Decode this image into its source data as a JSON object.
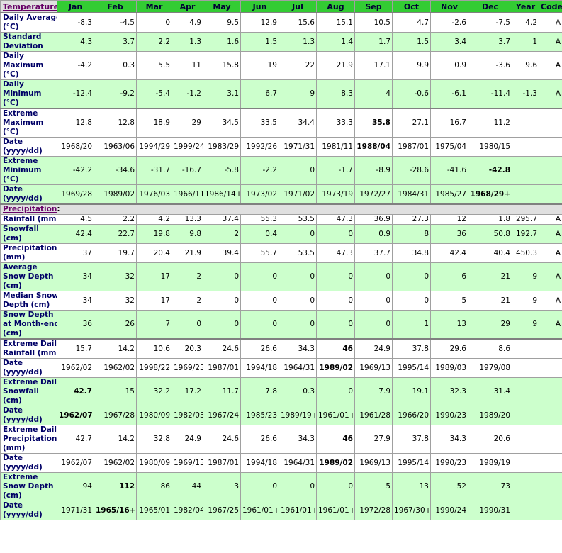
{
  "header": {
    "title": "Temperature",
    "punct": ":",
    "columns": [
      "Jan",
      "Feb",
      "Mar",
      "Apr",
      "May",
      "Jun",
      "Jul",
      "Aug",
      "Sep",
      "Oct",
      "Nov",
      "Dec",
      "Year",
      "Code"
    ]
  },
  "temperature": {
    "groups": [
      {
        "rows": [
          {
            "label": [
              "Daily Average",
              "(°C)"
            ],
            "bg": "#ffffff",
            "values": [
              -8.3,
              -4.5,
              0,
              4.9,
              9.5,
              12.9,
              15.6,
              15.1,
              10.5,
              4.7,
              -2.6,
              -7.5,
              4.2,
              "A"
            ]
          },
          {
            "label": [
              "Standard",
              "Deviation"
            ],
            "bg": "#ccffcc",
            "values": [
              4.3,
              3.7,
              2.2,
              1.3,
              1.6,
              1.5,
              1.3,
              1.4,
              1.7,
              1.5,
              3.4,
              3.7,
              1,
              "A"
            ]
          },
          {
            "label": [
              "Daily",
              "Maximum",
              "(°C)"
            ],
            "bg": "#ffffff",
            "values": [
              -4.2,
              0.3,
              5.5,
              11,
              15.8,
              19,
              22,
              21.9,
              17.1,
              9.9,
              0.9,
              -3.6,
              9.6,
              "A"
            ]
          },
          {
            "label": [
              "Daily",
              "Minimum",
              "(°C)"
            ],
            "bg": "#ccffcc",
            "values": [
              -12.4,
              -9.2,
              -5.4,
              -1.2,
              3.1,
              6.7,
              9,
              8.3,
              4,
              -0.6,
              -6.1,
              -11.4,
              -1.3,
              "A"
            ]
          }
        ]
      },
      {
        "rows": [
          {
            "label": [
              "Extreme",
              "Maximum",
              "(°C)"
            ],
            "bg": "#ffffff",
            "bold": [
              8
            ],
            "values": [
              12.8,
              12.8,
              18.9,
              29,
              34.5,
              33.5,
              34.4,
              33.3,
              35.8,
              27.1,
              16.7,
              11.2
            ]
          },
          {
            "label": [
              "Date",
              "(yyyy/dd)"
            ],
            "bg": "#ffffff",
            "bold": [
              8
            ],
            "values": [
              "1968/20",
              "1963/06",
              "1994/29",
              "1999/24",
              "1983/29",
              "1992/26",
              "1971/31",
              "1981/11",
              "1988/04",
              "1987/01",
              "1975/04",
              "1980/15"
            ]
          },
          {
            "label": [
              "Extreme",
              "Minimum",
              "(°C)"
            ],
            "bg": "#ccffcc",
            "bold": [
              11
            ],
            "values": [
              -42.2,
              -34.6,
              -31.7,
              -16.7,
              -5.8,
              -2.2,
              0,
              -1.7,
              -8.9,
              -28.6,
              -41.6,
              -42.8
            ]
          },
          {
            "label": [
              "Date",
              "(yyyy/dd)"
            ],
            "bg": "#ccffcc",
            "bold": [
              11
            ],
            "values": [
              "1969/28",
              "1989/02",
              "1976/03",
              "1966/11",
              "1986/14+",
              "1973/02",
              "1971/02",
              "1973/19",
              "1972/27",
              "1984/31",
              "1985/27",
              "1968/29+"
            ]
          }
        ]
      }
    ]
  },
  "precipitation": {
    "title": "Precipitation",
    "punct": ":",
    "groups": [
      {
        "rows": [
          {
            "label": [
              "Rainfall (mm)"
            ],
            "bg": "#ffffff",
            "values": [
              4.5,
              2.2,
              4.2,
              13.3,
              37.4,
              55.3,
              53.5,
              47.3,
              36.9,
              27.3,
              12,
              1.8,
              295.7,
              "A"
            ]
          },
          {
            "label": [
              "Snowfall",
              "(cm)"
            ],
            "bg": "#ccffcc",
            "values": [
              42.4,
              22.7,
              19.8,
              9.8,
              2,
              0.4,
              0,
              0,
              0.9,
              8,
              36,
              50.8,
              192.7,
              "A"
            ]
          },
          {
            "label": [
              "Precipitation",
              "(mm)"
            ],
            "bg": "#ffffff",
            "values": [
              37,
              19.7,
              20.4,
              21.9,
              39.4,
              55.7,
              53.5,
              47.3,
              37.7,
              34.8,
              42.4,
              40.4,
              450.3,
              "A"
            ]
          },
          {
            "label": [
              "Average",
              "Snow Depth",
              "(cm)"
            ],
            "bg": "#ccffcc",
            "values": [
              34,
              32,
              17,
              2,
              0,
              0,
              0,
              0,
              0,
              0,
              6,
              21,
              9,
              "A"
            ]
          },
          {
            "label": [
              "Median Snow",
              "Depth (cm)"
            ],
            "bg": "#ffffff",
            "values": [
              34,
              32,
              17,
              2,
              0,
              0,
              0,
              0,
              0,
              0,
              5,
              21,
              9,
              "A"
            ]
          },
          {
            "label": [
              "Snow Depth",
              "at Month-end",
              "(cm)"
            ],
            "bg": "#ccffcc",
            "values": [
              36,
              26,
              7,
              0,
              0,
              0,
              0,
              0,
              0,
              1,
              13,
              29,
              9,
              "A"
            ]
          }
        ]
      },
      {
        "rows": [
          {
            "label": [
              "Extreme Daily",
              "Rainfall (mm)"
            ],
            "bg": "#ffffff",
            "bold": [
              7
            ],
            "values": [
              15.7,
              14.2,
              10.6,
              20.3,
              24.6,
              26.6,
              34.3,
              46,
              24.9,
              37.8,
              29.6,
              8.6
            ]
          },
          {
            "label": [
              "Date",
              "(yyyy/dd)"
            ],
            "bg": "#ffffff",
            "bold": [
              7
            ],
            "values": [
              "1962/02",
              "1962/02",
              "1998/22",
              "1969/23",
              "1987/01",
              "1994/18",
              "1964/31",
              "1989/02",
              "1969/13",
              "1995/14",
              "1989/03",
              "1979/08"
            ]
          },
          {
            "label": [
              "Extreme Daily",
              "Snowfall",
              "(cm)"
            ],
            "bg": "#ccffcc",
            "bold": [
              0
            ],
            "values": [
              42.7,
              15,
              32.2,
              17.2,
              11.7,
              7.8,
              0.3,
              0,
              7.9,
              19.1,
              32.3,
              31.4
            ]
          },
          {
            "label": [
              "Date",
              "(yyyy/dd)"
            ],
            "bg": "#ccffcc",
            "bold": [
              0
            ],
            "values": [
              "1962/07",
              "1967/28",
              "1980/09",
              "1982/03",
              "1967/24",
              "1985/23",
              "1989/19+",
              "1961/01+",
              "1961/28",
              "1966/20",
              "1990/23",
              "1989/20"
            ]
          },
          {
            "label": [
              "Extreme Daily",
              "Precipitation",
              "(mm)"
            ],
            "bg": "#ffffff",
            "bold": [
              7
            ],
            "values": [
              42.7,
              14.2,
              32.8,
              24.9,
              24.6,
              26.6,
              34.3,
              46,
              27.9,
              37.8,
              34.3,
              20.6
            ]
          },
          {
            "label": [
              "Date",
              "(yyyy/dd)"
            ],
            "bg": "#ffffff",
            "bold": [
              7
            ],
            "values": [
              "1962/07",
              "1962/02",
              "1980/09",
              "1969/13",
              "1987/01",
              "1994/18",
              "1964/31",
              "1989/02",
              "1969/13",
              "1995/14",
              "1990/23",
              "1989/19"
            ]
          },
          {
            "label": [
              "Extreme",
              "Snow Depth",
              "(cm)"
            ],
            "bg": "#ccffcc",
            "bold": [
              1
            ],
            "values": [
              94,
              112,
              86,
              44,
              3,
              0,
              0,
              0,
              5,
              13,
              52,
              73
            ]
          },
          {
            "label": [
              "Date",
              "(yyyy/dd)"
            ],
            "bg": "#ccffcc",
            "bold": [
              1
            ],
            "values": [
              "1971/31",
              "1965/16+",
              "1965/01",
              "1982/04",
              "1967/25",
              "1961/01+",
              "1961/01+",
              "1961/01+",
              "1972/28",
              "1967/30+",
              "1990/24",
              "1990/31"
            ]
          }
        ]
      }
    ]
  }
}
